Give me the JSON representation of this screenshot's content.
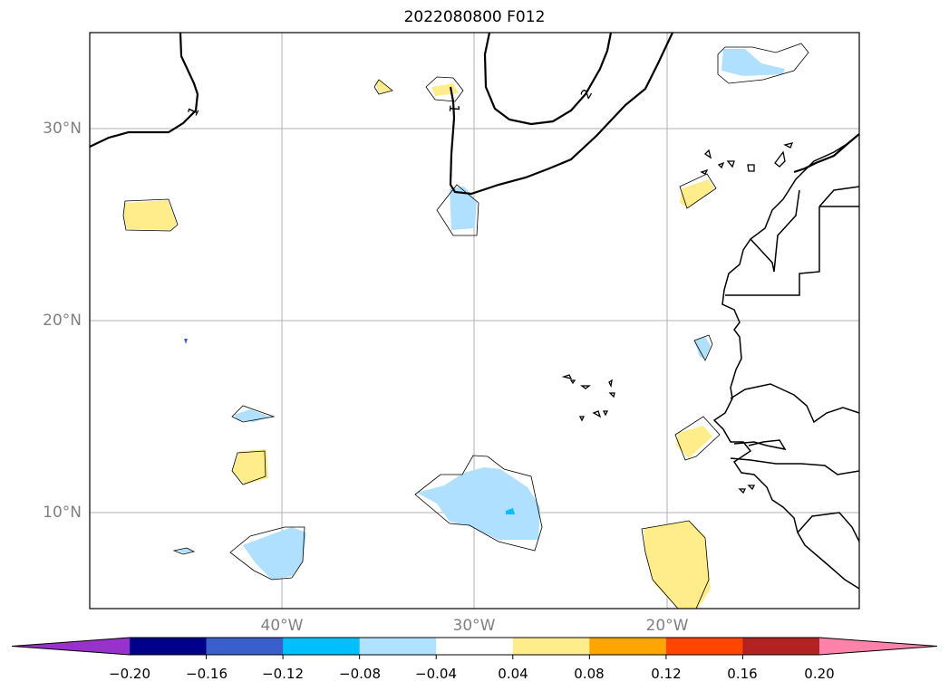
{
  "title": "2022080800 F012",
  "map": {
    "lat_labels": [
      "30°N",
      "20°N",
      "10°N"
    ],
    "lon_labels": [
      "40°W",
      "30°W",
      "20°W"
    ],
    "gridlines": true,
    "contour_labels": [
      "1",
      "1",
      "2"
    ],
    "colors": {
      "coastline": "#000000",
      "grid": "#b0b0b0",
      "positive_fill": "#ffec8b",
      "negative_fill": "#b0e0ff",
      "negative_strong": "#00bfff"
    }
  },
  "colorbar": {
    "ticks": [
      "−0.20",
      "−0.16",
      "−0.12",
      "−0.08",
      "−0.04",
      "0.04",
      "0.08",
      "0.12",
      "0.16",
      "0.20"
    ],
    "colors": [
      "#9932cc",
      "#00008b",
      "#3a5fcd",
      "#00bfff",
      "#b0e2ff",
      "#ffffff",
      "#ffec8b",
      "#ffa500",
      "#ff4500",
      "#b22222",
      "#ff82ab"
    ],
    "extend": "both"
  }
}
